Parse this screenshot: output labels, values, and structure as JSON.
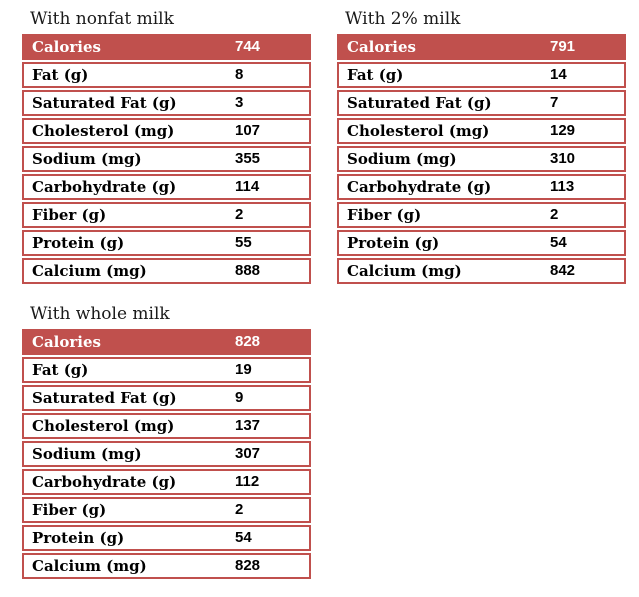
{
  "page": {
    "background": "#ffffff"
  },
  "colors": {
    "table_accent_red": "#c0504d",
    "row_background": "#ffffff",
    "header_text": "#ffffff",
    "body_text": "#000000",
    "title_text": "#1a1a1a"
  },
  "tables": [
    {
      "title": "With nonfat milk",
      "header": {
        "label": "Calories",
        "value": "744"
      },
      "rows": [
        {
          "label": "Fat (g)",
          "value": "8"
        },
        {
          "label": "Saturated Fat (g)",
          "value": "3"
        },
        {
          "label": "Cholesterol (mg)",
          "value": "107"
        },
        {
          "label": "Sodium (mg)",
          "value": "355"
        },
        {
          "label": "Carbohydrate (g)",
          "value": "114"
        },
        {
          "label": "Fiber (g)",
          "value": "2"
        },
        {
          "label": "Protein (g)",
          "value": "55"
        },
        {
          "label": "Calcium (mg)",
          "value": "888"
        }
      ]
    },
    {
      "title": "With 2% milk",
      "header": {
        "label": "Calories",
        "value": "791"
      },
      "rows": [
        {
          "label": "Fat (g)",
          "value": "14"
        },
        {
          "label": "Saturated Fat (g)",
          "value": "7"
        },
        {
          "label": "Cholesterol (mg)",
          "value": "129"
        },
        {
          "label": "Sodium (mg)",
          "value": "310"
        },
        {
          "label": "Carbohydrate (g)",
          "value": "113"
        },
        {
          "label": "Fiber (g)",
          "value": "2"
        },
        {
          "label": "Protein (g)",
          "value": "54"
        },
        {
          "label": "Calcium (mg)",
          "value": "842"
        }
      ]
    },
    {
      "title": "With whole milk",
      "header": {
        "label": "Calories",
        "value": "828"
      },
      "rows": [
        {
          "label": "Fat (g)",
          "value": "19"
        },
        {
          "label": "Saturated Fat (g)",
          "value": "9"
        },
        {
          "label": "Cholesterol (mg)",
          "value": "137"
        },
        {
          "label": "Sodium (mg)",
          "value": "307"
        },
        {
          "label": "Carbohydrate (g)",
          "value": "112"
        },
        {
          "label": "Fiber (g)",
          "value": "2"
        },
        {
          "label": "Protein (g)",
          "value": "54"
        },
        {
          "label": "Calcium (mg)",
          "value": "828"
        }
      ]
    }
  ],
  "chart_data": [
    {
      "type": "table",
      "title": "With nonfat milk",
      "categories": [
        "Calories",
        "Fat (g)",
        "Saturated Fat (g)",
        "Cholesterol (mg)",
        "Sodium (mg)",
        "Carbohydrate (g)",
        "Fiber (g)",
        "Protein (g)",
        "Calcium (mg)"
      ],
      "values": [
        744,
        8,
        3,
        107,
        355,
        114,
        2,
        55,
        888
      ]
    },
    {
      "type": "table",
      "title": "With 2% milk",
      "categories": [
        "Calories",
        "Fat (g)",
        "Saturated Fat (g)",
        "Cholesterol (mg)",
        "Sodium (mg)",
        "Carbohydrate (g)",
        "Fiber (g)",
        "Protein (g)",
        "Calcium (mg)"
      ],
      "values": [
        791,
        14,
        7,
        129,
        310,
        113,
        2,
        54,
        842
      ]
    },
    {
      "type": "table",
      "title": "With whole milk",
      "categories": [
        "Calories",
        "Fat (g)",
        "Saturated Fat (g)",
        "Cholesterol (mg)",
        "Sodium (mg)",
        "Carbohydrate (g)",
        "Fiber (g)",
        "Protein (g)",
        "Calcium (mg)"
      ],
      "values": [
        828,
        19,
        9,
        137,
        307,
        112,
        2,
        54,
        828
      ]
    }
  ]
}
